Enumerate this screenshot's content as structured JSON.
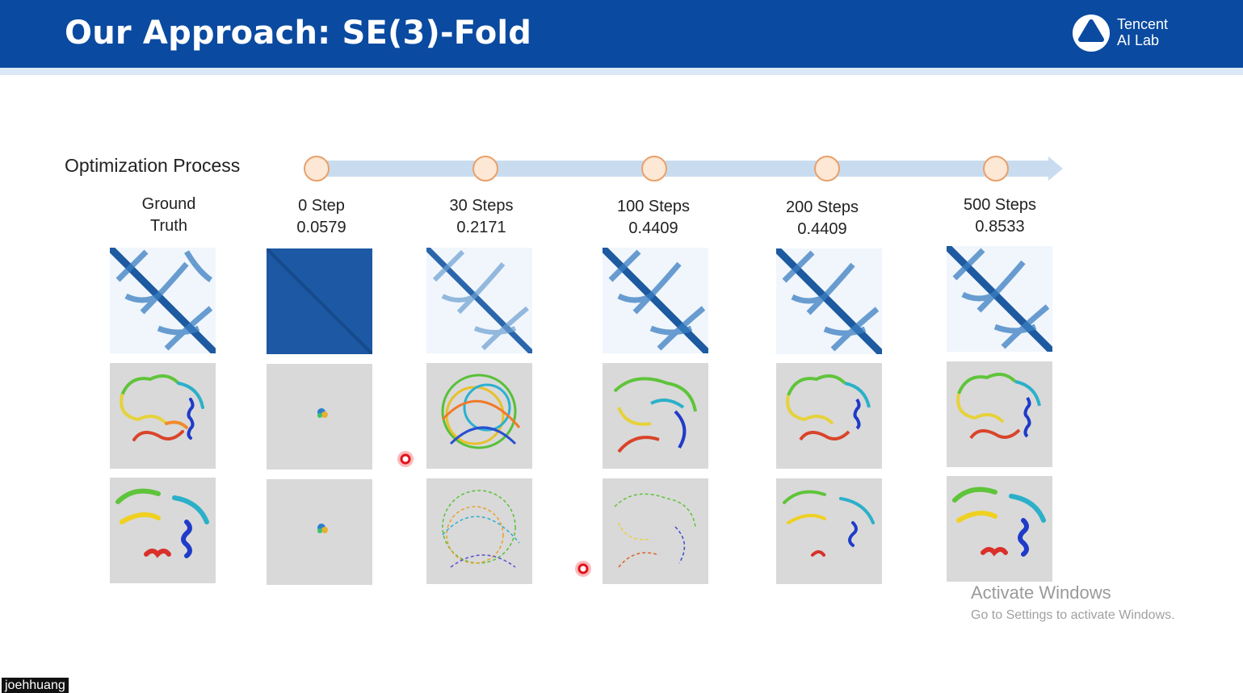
{
  "slide": {
    "title": "Our Approach: SE(3)-Fold",
    "logo_text": [
      "Tencent",
      "AI Lab"
    ],
    "process_label": "Optimization Process"
  },
  "columns": [
    {
      "name": "Ground",
      "name2": "Truth",
      "score": ""
    },
    {
      "name": "0 Step",
      "name2": "",
      "score": "0.0579"
    },
    {
      "name": "30 Steps",
      "name2": "",
      "score": "0.2171"
    },
    {
      "name": "100 Steps",
      "name2": "",
      "score": "0.4409"
    },
    {
      "name": "200 Steps",
      "name2": "",
      "score": "0.4409"
    },
    {
      "name": "500 Steps",
      "name2": "",
      "score": "0.8533"
    }
  ],
  "watermark": {
    "line1": "Activate Windows",
    "line2": "Go to Settings to activate Windows."
  },
  "presenter": "joehhuang",
  "colors": {
    "header": "#0a4aa0",
    "timeline": "#c9dcef",
    "node_fill": "#fde7d5",
    "node_stroke": "#e8a06a"
  }
}
